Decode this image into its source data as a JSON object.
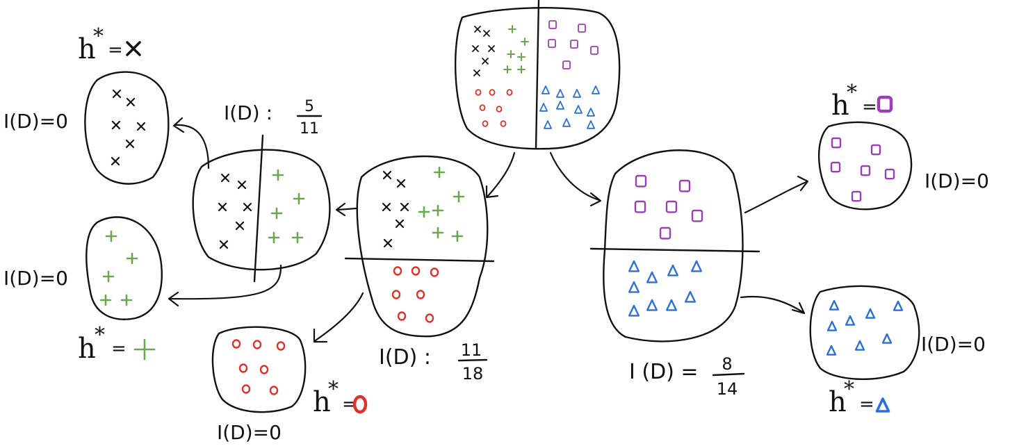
{
  "colors": {
    "cross": "#111111",
    "plus": "#6aa84f",
    "circle": "#e0302a",
    "square": "#9b3fb5",
    "triangle": "#2a6fd6",
    "ink": "#111111"
  },
  "root": {
    "left_labels": {
      "cross": "×",
      "plus": "+"
    }
  },
  "left_child": {
    "impurity_label": "I(D) :",
    "impurity_num": "11",
    "impurity_den": "18"
  },
  "right_child": {
    "impurity_label": "I (D) =",
    "impurity_num": "8",
    "impurity_den": "14"
  },
  "left_left": {
    "impurity_label": "I(D) :",
    "impurity_num": "5",
    "impurity_den": "11"
  },
  "leaves": {
    "cross": {
      "impurity": "I(D)=0",
      "h_star": "h",
      "h_sup": "*",
      "h_eq": "="
    },
    "plus": {
      "impurity": "I(D)=0",
      "h_star": "h",
      "h_sup": "*",
      "h_eq": "="
    },
    "circle": {
      "impurity": "I(D)=0",
      "h_star": "h",
      "h_sup": "*",
      "h_eq": "="
    },
    "square": {
      "impurity": "I(D)=0",
      "h_star": "h",
      "h_sup": "*",
      "h_eq": "="
    },
    "triangle": {
      "impurity": "I(D)=0",
      "h_star": "h",
      "h_sup": "*",
      "h_eq": "="
    }
  }
}
